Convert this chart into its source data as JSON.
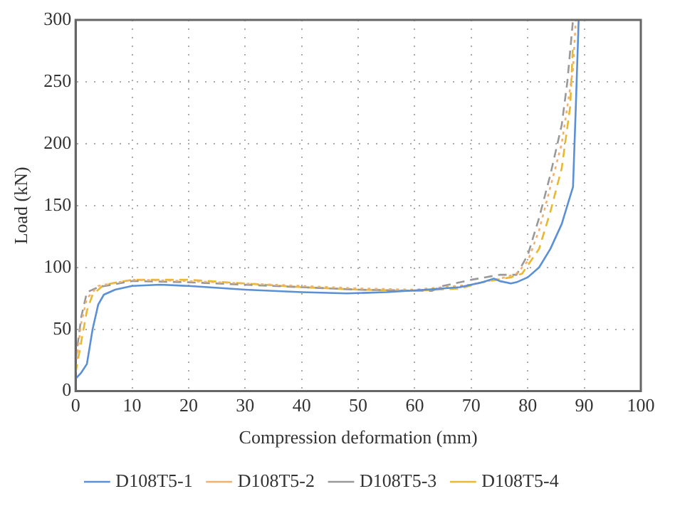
{
  "chart_data": {
    "type": "line",
    "xlabel": "Compression deformation (mm)",
    "ylabel": "Load (kN)",
    "xlim": [
      0,
      100
    ],
    "xticks": [
      0,
      10,
      20,
      30,
      40,
      50,
      60,
      70,
      80,
      90,
      100
    ],
    "ylim": [
      0,
      300
    ],
    "yticks": [
      0,
      50,
      100,
      150,
      200,
      250,
      300
    ],
    "grid": true,
    "legend": "bottom",
    "marker": "none",
    "series": [
      {
        "name": "D108T5-1",
        "color": "#5b8fd6",
        "line_style": "solid",
        "x": [
          0,
          1,
          2,
          3,
          4,
          5,
          7,
          10,
          15,
          20,
          30,
          40,
          48,
          55,
          62,
          68,
          72,
          74,
          75,
          77,
          78,
          80,
          82,
          84,
          86,
          88,
          88.5,
          89
        ],
        "values": [
          10,
          15,
          22,
          50,
          70,
          78,
          82,
          85,
          86,
          85,
          82,
          80,
          79,
          80,
          82,
          84,
          88,
          91,
          89,
          87,
          88,
          92,
          100,
          115,
          135,
          165,
          230,
          300
        ]
      },
      {
        "name": "D108T5-2",
        "color": "#f0b070",
        "line_style": "dotted",
        "x": [
          0,
          1,
          2,
          4,
          10,
          20,
          30,
          40,
          50,
          60,
          70,
          76,
          78,
          80,
          82,
          84,
          86,
          88,
          88.5
        ],
        "values": [
          20,
          55,
          75,
          85,
          90,
          89,
          87,
          85,
          83,
          82,
          86,
          92,
          95,
          105,
          130,
          165,
          200,
          260,
          300
        ]
      },
      {
        "name": "D108T5-3",
        "color": "#999999",
        "line_style": "dashed",
        "x": [
          0,
          1,
          2,
          4,
          10,
          20,
          30,
          40,
          50,
          63,
          65,
          70,
          75,
          78,
          80,
          82,
          84,
          86,
          87,
          88
        ],
        "values": [
          25,
          60,
          80,
          84,
          89,
          88,
          86,
          84,
          82,
          81,
          85,
          90,
          94,
          94,
          110,
          140,
          175,
          215,
          250,
          300
        ]
      },
      {
        "name": "D108T5-4",
        "color": "#e8b830",
        "line_style": "dashed",
        "x": [
          0,
          1,
          2,
          3,
          5,
          10,
          20,
          30,
          40,
          50,
          60,
          68,
          72,
          77,
          79,
          82,
          84,
          86,
          87.5,
          88
        ],
        "values": [
          15,
          40,
          65,
          78,
          86,
          90,
          90,
          87,
          84,
          82,
          81,
          83,
          88,
          92,
          95,
          115,
          145,
          180,
          230,
          280
        ]
      }
    ]
  }
}
